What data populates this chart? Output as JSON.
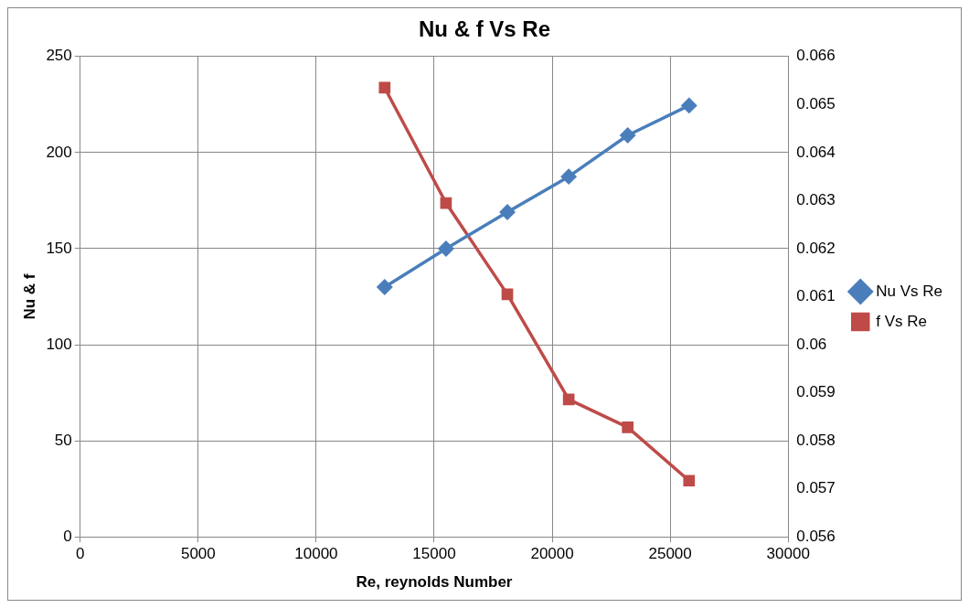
{
  "chart_data": {
    "type": "line",
    "title": "Nu & f Vs Re",
    "xlabel": "Re, reynolds Number",
    "ylabel": "Nu & f",
    "x": [
      12900,
      15500,
      18100,
      20700,
      23200,
      25800
    ],
    "series": [
      {
        "name": "Nu Vs Re",
        "color": "#4a7ebb",
        "marker": "diamond",
        "values": [
          130,
          150,
          169,
          187.5,
          209,
          224.5
        ]
      },
      {
        "name": "f Vs Re",
        "color": "#be4b48",
        "marker": "square",
        "axis": "y2",
        "values": [
          0.06535,
          0.06295,
          0.06105,
          0.05886,
          0.05828,
          0.05717
        ]
      }
    ],
    "xlim": [
      0,
      30000
    ],
    "xticks": [
      0,
      5000,
      10000,
      15000,
      20000,
      25000,
      30000
    ],
    "ylim": [
      0,
      250
    ],
    "yticks": [
      0,
      50,
      100,
      150,
      200,
      250
    ],
    "y2lim": [
      0.056,
      0.066
    ],
    "y2ticks": [
      0.056,
      0.057,
      0.058,
      0.059,
      0.06,
      0.061,
      0.062,
      0.063,
      0.064,
      0.065,
      0.066
    ],
    "grid": true,
    "legend": "right",
    "line_style": "solid"
  }
}
